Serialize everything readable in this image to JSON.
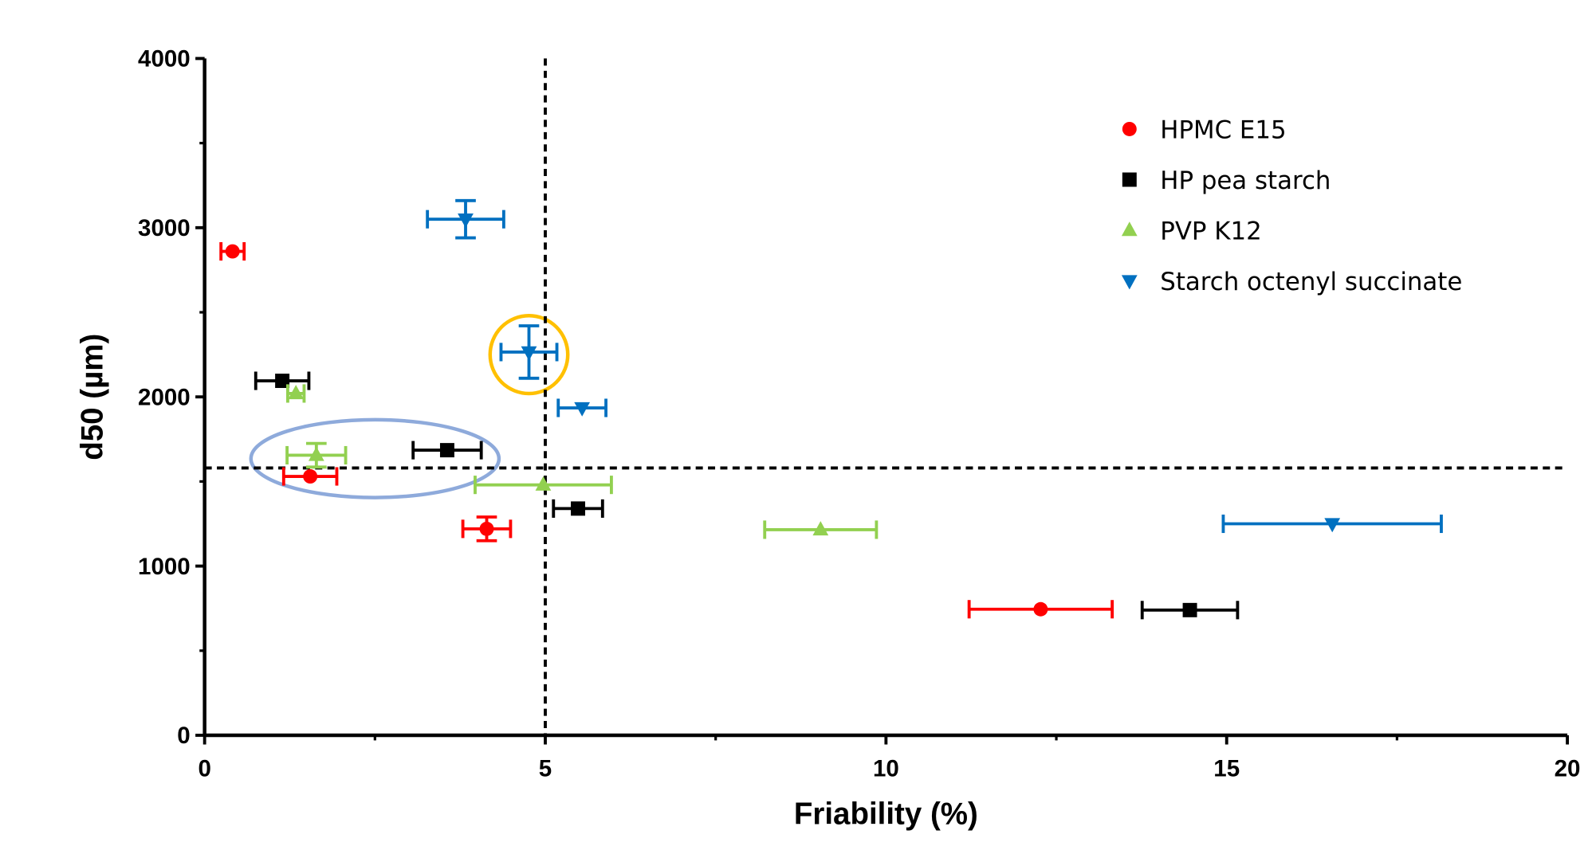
{
  "chart_data": {
    "type": "scatter",
    "title": "",
    "xlabel": "Friability (%)",
    "ylabel": "d50 (µm)",
    "xlim": [
      0,
      20
    ],
    "ylim": [
      0,
      4000
    ],
    "xticks": [
      0,
      5,
      10,
      15,
      20
    ],
    "yticks": [
      0,
      1000,
      2000,
      3000,
      4000
    ],
    "grid": false,
    "legend_position": "top-right",
    "reference_lines": {
      "vertical_x": 5,
      "horizontal_y": 1580,
      "style": "dashed",
      "color": "#000000"
    },
    "series": [
      {
        "name": "HPMC E15",
        "marker": "circle",
        "color": "#ff0000",
        "points": [
          {
            "x": 0.41,
            "y": 2860,
            "xerr": 0.17,
            "yerr": 0
          },
          {
            "x": 1.55,
            "y": 1530,
            "xerr": 0.39,
            "yerr": 0
          },
          {
            "x": 4.14,
            "y": 1220,
            "xerr": 0.35,
            "yerr": 70
          },
          {
            "x": 12.27,
            "y": 745,
            "xerr": 1.05,
            "yerr": 0
          }
        ]
      },
      {
        "name": "HP pea starch",
        "marker": "square",
        "color": "#000000",
        "points": [
          {
            "x": 1.14,
            "y": 2095,
            "xerr": 0.39,
            "yerr": 0
          },
          {
            "x": 3.56,
            "y": 1685,
            "xerr": 0.5,
            "yerr": 0
          },
          {
            "x": 5.48,
            "y": 1340,
            "xerr": 0.36,
            "yerr": 0
          },
          {
            "x": 14.46,
            "y": 740,
            "xerr": 0.7,
            "yerr": 0
          }
        ]
      },
      {
        "name": "PVP K12",
        "marker": "triangle-up",
        "color": "#92d050",
        "points": [
          {
            "x": 1.34,
            "y": 2020,
            "xerr": 0.12,
            "yerr": 0
          },
          {
            "x": 1.64,
            "y": 1655,
            "xerr": 0.43,
            "yerr": 70
          },
          {
            "x": 4.97,
            "y": 1480,
            "xerr": 1.0,
            "yerr": 0
          },
          {
            "x": 9.04,
            "y": 1215,
            "xerr": 0.82,
            "yerr": 0
          }
        ]
      },
      {
        "name": "Starch octenyl succinate",
        "marker": "triangle-down",
        "color": "#0070c0",
        "points": [
          {
            "x": 3.83,
            "y": 3050,
            "xerr": 0.56,
            "yerr": 110
          },
          {
            "x": 4.76,
            "y": 2265,
            "xerr": 0.41,
            "yerr": 155
          },
          {
            "x": 5.54,
            "y": 1935,
            "xerr": 0.35,
            "yerr": 0
          },
          {
            "x": 16.55,
            "y": 1250,
            "xerr": 1.6,
            "yerr": 0
          }
        ]
      }
    ],
    "annotations": [
      {
        "shape": "circle",
        "color": "#ffc000",
        "center": {
          "x": 4.76,
          "y": 2250
        },
        "radius_x": 0.57,
        "radius_y": 230
      },
      {
        "shape": "ellipse",
        "color": "#8eaadb",
        "center": {
          "x": 2.5,
          "y": 1635
        },
        "radius_x": 1.82,
        "radius_y": 230
      }
    ]
  }
}
